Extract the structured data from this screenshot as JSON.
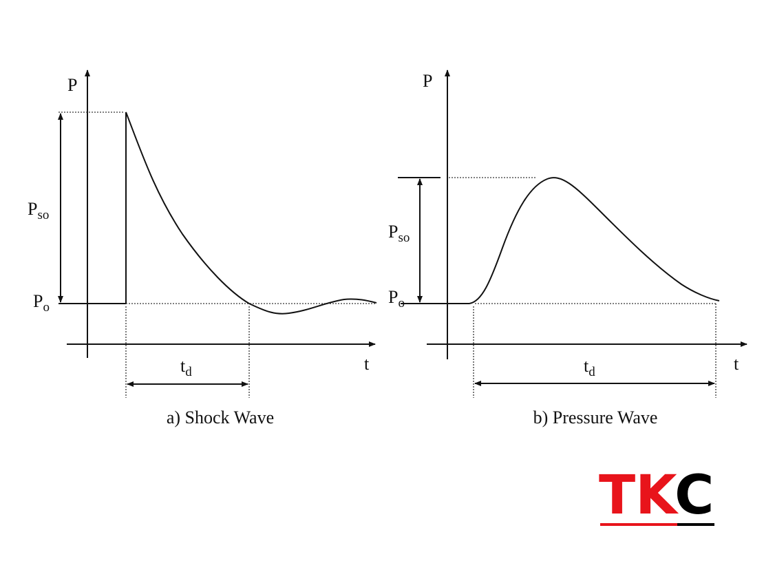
{
  "panels": [
    {
      "y_axis": "P",
      "x_axis": "t",
      "peak_label": {
        "main": "P",
        "sub": "so"
      },
      "base_label": {
        "main": "P",
        "sub": "o"
      },
      "duration_label": {
        "main": "t",
        "sub": "d"
      },
      "caption": "a) Shock Wave"
    },
    {
      "y_axis": "P",
      "x_axis": "t",
      "peak_label": {
        "main": "P",
        "sub": "so"
      },
      "base_label": {
        "main": "P",
        "sub": "o"
      },
      "duration_label": {
        "main": "t",
        "sub": "d"
      },
      "caption": "b) Pressure Wave"
    }
  ],
  "logo": {
    "red": "TK",
    "black": "C"
  }
}
